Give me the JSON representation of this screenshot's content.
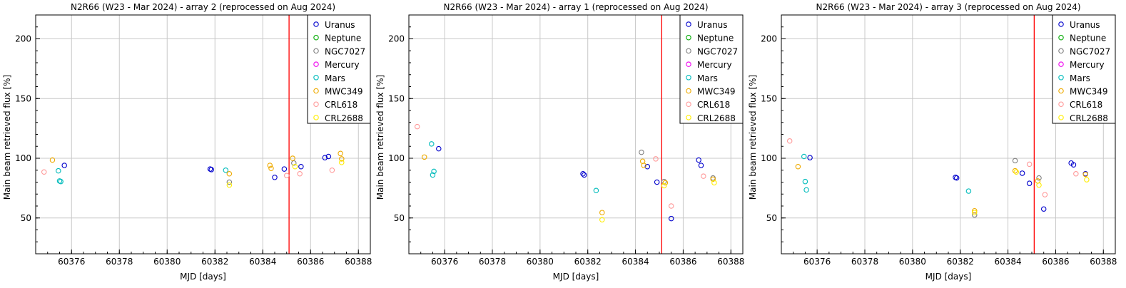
{
  "chart_data": [
    {
      "type": "scatter",
      "title": "N2R66 (W23 - Mar 2024) - array 2 (reprocessed on Aug 2024)",
      "xlabel": "MJD [days]",
      "ylabel": "Main beam retrieved flux [%]",
      "xlim": [
        60374.5,
        60388.5
      ],
      "ylim": [
        20,
        220
      ],
      "xticks": [
        60376,
        60378,
        60380,
        60382,
        60384,
        60386,
        60388
      ],
      "yticks": [
        50,
        100,
        150,
        200
      ],
      "grid": true,
      "legend_position": "top-right",
      "vline_x": 60385.1,
      "vline_color": "#ff0000",
      "series": [
        {
          "name": "Uranus",
          "color": "#0000cc",
          "points": [
            [
              60375.7,
              94
            ],
            [
              60381.8,
              91
            ],
            [
              60381.85,
              90.5
            ],
            [
              60384.5,
              84
            ],
            [
              60384.9,
              91
            ],
            [
              60385.6,
              93
            ],
            [
              60386.6,
              100.5
            ],
            [
              60386.75,
              101.5
            ]
          ]
        },
        {
          "name": "Neptune",
          "color": "#00aa00",
          "points": []
        },
        {
          "name": "NGC7027",
          "color": "#808080",
          "points": [
            [
              60382.6,
              80
            ],
            [
              60385.3,
              96
            ]
          ]
        },
        {
          "name": "Mercury",
          "color": "#ee00ee",
          "points": []
        },
        {
          "name": "Mars",
          "color": "#00bbbb",
          "points": [
            [
              60375.45,
              89.5
            ],
            [
              60375.5,
              81
            ],
            [
              60375.55,
              80.5
            ],
            [
              60382.45,
              90
            ]
          ]
        },
        {
          "name": "MWC349",
          "color": "#eeaa00",
          "points": [
            [
              60375.2,
              98.5
            ],
            [
              60382.6,
              87
            ],
            [
              60384.3,
              94
            ],
            [
              60384.35,
              91.5
            ],
            [
              60385.25,
              100
            ],
            [
              60387.25,
              104
            ],
            [
              60387.3,
              99.5
            ]
          ]
        },
        {
          "name": "CRL618",
          "color": "#ff9999",
          "points": [
            [
              60374.85,
              88.5
            ],
            [
              60385.0,
              85.5
            ],
            [
              60385.55,
              87
            ],
            [
              60386.9,
              90
            ]
          ]
        },
        {
          "name": "CRL2688",
          "color": "#ffee00",
          "points": [
            [
              60382.6,
              77.5
            ],
            [
              60385.35,
              93
            ],
            [
              60387.3,
              96.5
            ]
          ]
        }
      ]
    },
    {
      "type": "scatter",
      "title": "N2R66 (W23 - Mar 2024) - array 1 (reprocessed on Aug 2024)",
      "xlabel": "MJD [days]",
      "ylabel": "Main beam retrieved flux [%]",
      "xlim": [
        60374.5,
        60388.5
      ],
      "ylim": [
        20,
        220
      ],
      "xticks": [
        60376,
        60378,
        60380,
        60382,
        60384,
        60386,
        60388
      ],
      "yticks": [
        50,
        100,
        150,
        200
      ],
      "grid": true,
      "legend_position": "top-right",
      "vline_x": 60385.1,
      "vline_color": "#ff0000",
      "series": [
        {
          "name": "Uranus",
          "color": "#0000cc",
          "points": [
            [
              60375.75,
              108
            ],
            [
              60381.8,
              87
            ],
            [
              60381.85,
              86
            ],
            [
              60384.5,
              93
            ],
            [
              60384.9,
              80
            ],
            [
              60385.5,
              49.5
            ],
            [
              60386.65,
              98.5
            ],
            [
              60386.75,
              94
            ]
          ]
        },
        {
          "name": "Neptune",
          "color": "#00aa00",
          "points": []
        },
        {
          "name": "NGC7027",
          "color": "#808080",
          "points": [
            [
              60384.25,
              105
            ],
            [
              60385.2,
              80.5
            ],
            [
              60387.25,
              83.5
            ]
          ]
        },
        {
          "name": "Mercury",
          "color": "#ee00ee",
          "points": []
        },
        {
          "name": "Mars",
          "color": "#00bbbb",
          "points": [
            [
              60375.45,
              112
            ],
            [
              60375.5,
              86
            ],
            [
              60375.55,
              89
            ],
            [
              60382.35,
              73
            ]
          ]
        },
        {
          "name": "MWC349",
          "color": "#eeaa00",
          "points": [
            [
              60375.15,
              101
            ],
            [
              60382.6,
              54.5
            ],
            [
              60384.3,
              97.5
            ],
            [
              60384.35,
              94
            ],
            [
              60385.25,
              79.5
            ],
            [
              60387.25,
              82.5
            ]
          ]
        },
        {
          "name": "CRL618",
          "color": "#ff9999",
          "points": [
            [
              60374.85,
              126.5
            ],
            [
              60384.85,
              99.5
            ],
            [
              60385.5,
              60
            ],
            [
              60386.85,
              85
            ]
          ]
        },
        {
          "name": "CRL2688",
          "color": "#ffee00",
          "points": [
            [
              60382.6,
              48.5
            ],
            [
              60385.2,
              77
            ],
            [
              60387.3,
              79.5
            ]
          ]
        }
      ]
    },
    {
      "type": "scatter",
      "title": "N2R66 (W23 - Mar 2024) - array 3 (reprocessed on Aug 2024)",
      "xlabel": "MJD [days]",
      "ylabel": "Main beam retrieved flux [%]",
      "xlim": [
        60374.5,
        60388.5
      ],
      "ylim": [
        20,
        220
      ],
      "xticks": [
        60376,
        60378,
        60380,
        60382,
        60384,
        60386,
        60388
      ],
      "yticks": [
        50,
        100,
        150,
        200
      ],
      "grid": true,
      "legend_position": "top-right",
      "vline_x": 60385.1,
      "vline_color": "#ff0000",
      "series": [
        {
          "name": "Uranus",
          "color": "#0000cc",
          "points": [
            [
              60375.7,
              100.5
            ],
            [
              60381.8,
              84
            ],
            [
              60381.85,
              83.5
            ],
            [
              60384.6,
              87.5
            ],
            [
              60384.9,
              79
            ],
            [
              60385.5,
              57.5
            ],
            [
              60386.65,
              96
            ],
            [
              60386.75,
              94.5
            ],
            [
              60387.25,
              87
            ]
          ]
        },
        {
          "name": "Neptune",
          "color": "#00aa00",
          "points": []
        },
        {
          "name": "NGC7027",
          "color": "#808080",
          "points": [
            [
              60382.6,
              52.5
            ],
            [
              60384.3,
              98
            ],
            [
              60385.3,
              83.5
            ]
          ]
        },
        {
          "name": "Mercury",
          "color": "#ee00ee",
          "points": []
        },
        {
          "name": "Mars",
          "color": "#00bbbb",
          "points": [
            [
              60375.45,
              101.5
            ],
            [
              60375.5,
              80.5
            ],
            [
              60375.55,
              73.5
            ],
            [
              60382.35,
              72.5
            ]
          ]
        },
        {
          "name": "MWC349",
          "color": "#eeaa00",
          "points": [
            [
              60375.2,
              93
            ],
            [
              60382.6,
              56
            ],
            [
              60384.3,
              89.5
            ],
            [
              60385.25,
              81
            ],
            [
              60387.25,
              86.5
            ]
          ]
        },
        {
          "name": "CRL618",
          "color": "#ff9999",
          "points": [
            [
              60374.85,
              114.5
            ],
            [
              60384.9,
              95
            ],
            [
              60385.55,
              69.5
            ],
            [
              60386.85,
              87
            ]
          ]
        },
        {
          "name": "CRL2688",
          "color": "#ffee00",
          "points": [
            [
              60382.6,
              54.5
            ],
            [
              60384.35,
              88.5
            ],
            [
              60385.3,
              77.5
            ],
            [
              60387.3,
              82
            ]
          ]
        }
      ]
    }
  ]
}
